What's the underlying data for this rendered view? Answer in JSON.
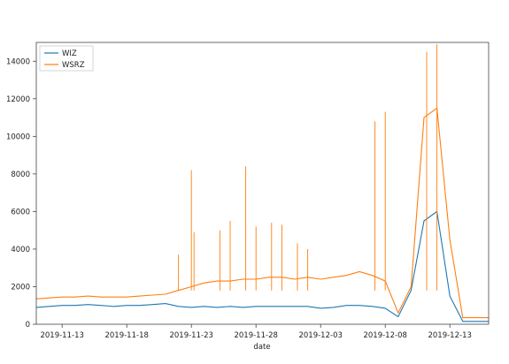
{
  "chart_data": {
    "type": "line",
    "xlabel": "date",
    "ylabel": "",
    "ylim": [
      0,
      15000
    ],
    "xlim": [
      "2019-11-11",
      "2019-12-16"
    ],
    "x_ticks": [
      "2019-11-13",
      "2019-11-18",
      "2019-11-23",
      "2019-11-28",
      "2019-12-03",
      "2019-12-08",
      "2019-12-13"
    ],
    "y_ticks": [
      0,
      2000,
      4000,
      6000,
      8000,
      10000,
      12000,
      14000
    ],
    "y_tick_labels": [
      "0",
      "2000",
      "4000",
      "6000",
      "8000",
      "10000",
      "12000",
      "14000"
    ],
    "grid": false,
    "legend": "top-left",
    "series": [
      {
        "name": "WIZ",
        "color": "#1f77b4",
        "points": [
          [
            "2019-11-11",
            900
          ],
          [
            "2019-11-12",
            950
          ],
          [
            "2019-11-13",
            1000
          ],
          [
            "2019-11-14",
            1000
          ],
          [
            "2019-11-15",
            1050
          ],
          [
            "2019-11-16",
            1000
          ],
          [
            "2019-11-17",
            950
          ],
          [
            "2019-11-18",
            1000
          ],
          [
            "2019-11-19",
            1000
          ],
          [
            "2019-11-20",
            1050
          ],
          [
            "2019-11-21",
            1100
          ],
          [
            "2019-11-22",
            950
          ],
          [
            "2019-11-23",
            900
          ],
          [
            "2019-11-24",
            950
          ],
          [
            "2019-11-25",
            900
          ],
          [
            "2019-11-26",
            950
          ],
          [
            "2019-11-27",
            900
          ],
          [
            "2019-11-28",
            950
          ],
          [
            "2019-11-29",
            950
          ],
          [
            "2019-11-30",
            950
          ],
          [
            "2019-12-01",
            950
          ],
          [
            "2019-12-02",
            950
          ],
          [
            "2019-12-03",
            850
          ],
          [
            "2019-12-04",
            900
          ],
          [
            "2019-12-05",
            1000
          ],
          [
            "2019-12-06",
            1000
          ],
          [
            "2019-12-07",
            950
          ],
          [
            "2019-12-08",
            850
          ],
          [
            "2019-12-09",
            400
          ],
          [
            "2019-12-10",
            1800
          ],
          [
            "2019-12-11",
            5500
          ],
          [
            "2019-12-12",
            6000
          ],
          [
            "2019-12-13",
            1500
          ],
          [
            "2019-12-14",
            150
          ],
          [
            "2019-12-15",
            150
          ],
          [
            "2019-12-16",
            150
          ]
        ]
      },
      {
        "name": "WSRZ",
        "color": "#ff7f0e",
        "points": [
          [
            "2019-11-11",
            1350
          ],
          [
            "2019-11-12",
            1400
          ],
          [
            "2019-11-13",
            1450
          ],
          [
            "2019-11-14",
            1450
          ],
          [
            "2019-11-15",
            1500
          ],
          [
            "2019-11-16",
            1450
          ],
          [
            "2019-11-17",
            1450
          ],
          [
            "2019-11-18",
            1450
          ],
          [
            "2019-11-19",
            1500
          ],
          [
            "2019-11-20",
            1550
          ],
          [
            "2019-11-21",
            1600
          ],
          [
            "2019-11-22",
            1800
          ],
          [
            "2019-11-23",
            2000
          ],
          [
            "2019-11-24",
            2200
          ],
          [
            "2019-11-25",
            2300
          ],
          [
            "2019-11-26",
            2300
          ],
          [
            "2019-11-27",
            2400
          ],
          [
            "2019-11-28",
            2400
          ],
          [
            "2019-11-29",
            2500
          ],
          [
            "2019-11-30",
            2500
          ],
          [
            "2019-12-01",
            2400
          ],
          [
            "2019-12-02",
            2500
          ],
          [
            "2019-12-03",
            2400
          ],
          [
            "2019-12-04",
            2500
          ],
          [
            "2019-12-05",
            2600
          ],
          [
            "2019-12-06",
            2800
          ],
          [
            "2019-12-07",
            2600
          ],
          [
            "2019-12-08",
            2300
          ],
          [
            "2019-12-09",
            600
          ],
          [
            "2019-12-10",
            2000
          ],
          [
            "2019-12-11",
            11000
          ],
          [
            "2019-12-12",
            11500
          ],
          [
            "2019-12-13",
            4500
          ],
          [
            "2019-12-14",
            350
          ],
          [
            "2019-12-15",
            350
          ],
          [
            "2019-12-16",
            350
          ]
        ],
        "spikes": [
          [
            "2019-11-22",
            3700
          ],
          [
            "2019-11-23",
            4900
          ],
          [
            "2019-11-23",
            8200
          ],
          [
            "2019-11-25",
            5000
          ],
          [
            "2019-11-26",
            5500
          ],
          [
            "2019-11-27",
            8400
          ],
          [
            "2019-11-28",
            5200
          ],
          [
            "2019-11-29",
            5400
          ],
          [
            "2019-11-30",
            5300
          ],
          [
            "2019-12-01",
            4300
          ],
          [
            "2019-12-02",
            4000
          ],
          [
            "2019-12-07",
            10800
          ],
          [
            "2019-12-08",
            11300
          ],
          [
            "2019-12-11",
            14500
          ],
          [
            "2019-12-12",
            14900
          ]
        ]
      }
    ]
  }
}
